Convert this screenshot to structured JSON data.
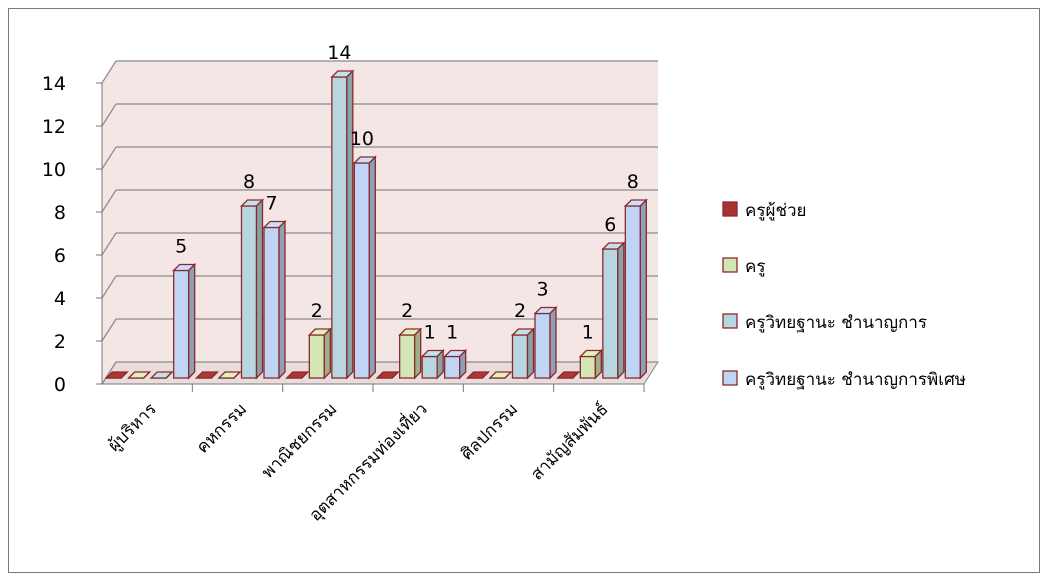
{
  "chart_data": {
    "type": "bar",
    "three_d": true,
    "categories": [
      "ผู้บริหาร",
      "คหกรรม",
      "พาณิชยกรรม",
      "อุตสาหกรรมท่องเที่ยว",
      "ศิลปกรรม",
      "สามัญสัมพันธ์"
    ],
    "series": [
      {
        "name": "ครูผู้ช่วย",
        "values": [
          0,
          0,
          0,
          0,
          0,
          0
        ],
        "color": "#a83232"
      },
      {
        "name": "ครู",
        "values": [
          0,
          0,
          2,
          2,
          0,
          1
        ],
        "color": "#d4e6b5"
      },
      {
        "name": "ครูวิทยฐานะ ชำนาญการ",
        "values": [
          0,
          8,
          14,
          1,
          2,
          6
        ],
        "color": "#b8d6e0"
      },
      {
        "name": "ครูวิทยฐานะ ชำนาญการพิเศษ",
        "values": [
          5,
          7,
          10,
          1,
          3,
          8
        ],
        "color": "#c0d4f5"
      }
    ],
    "data_labels": [
      [
        "",
        "",
        "",
        "",
        "",
        ""
      ],
      [
        "",
        "",
        "2",
        "2",
        "",
        "1"
      ],
      [
        "",
        "8",
        "14",
        "1",
        "2",
        "6"
      ],
      [
        "5",
        "7",
        "10",
        "1",
        "3",
        "8"
      ]
    ],
    "yticks": [
      "0",
      "2",
      "4",
      "6",
      "8",
      "10",
      "12",
      "14"
    ],
    "ylim": [
      0,
      14
    ],
    "grid": true,
    "legend_position": "right",
    "colors": {
      "wall": "#f5e6e6",
      "bar_edge": "#8b2a2a",
      "grid": "#8a8a8a"
    }
  }
}
